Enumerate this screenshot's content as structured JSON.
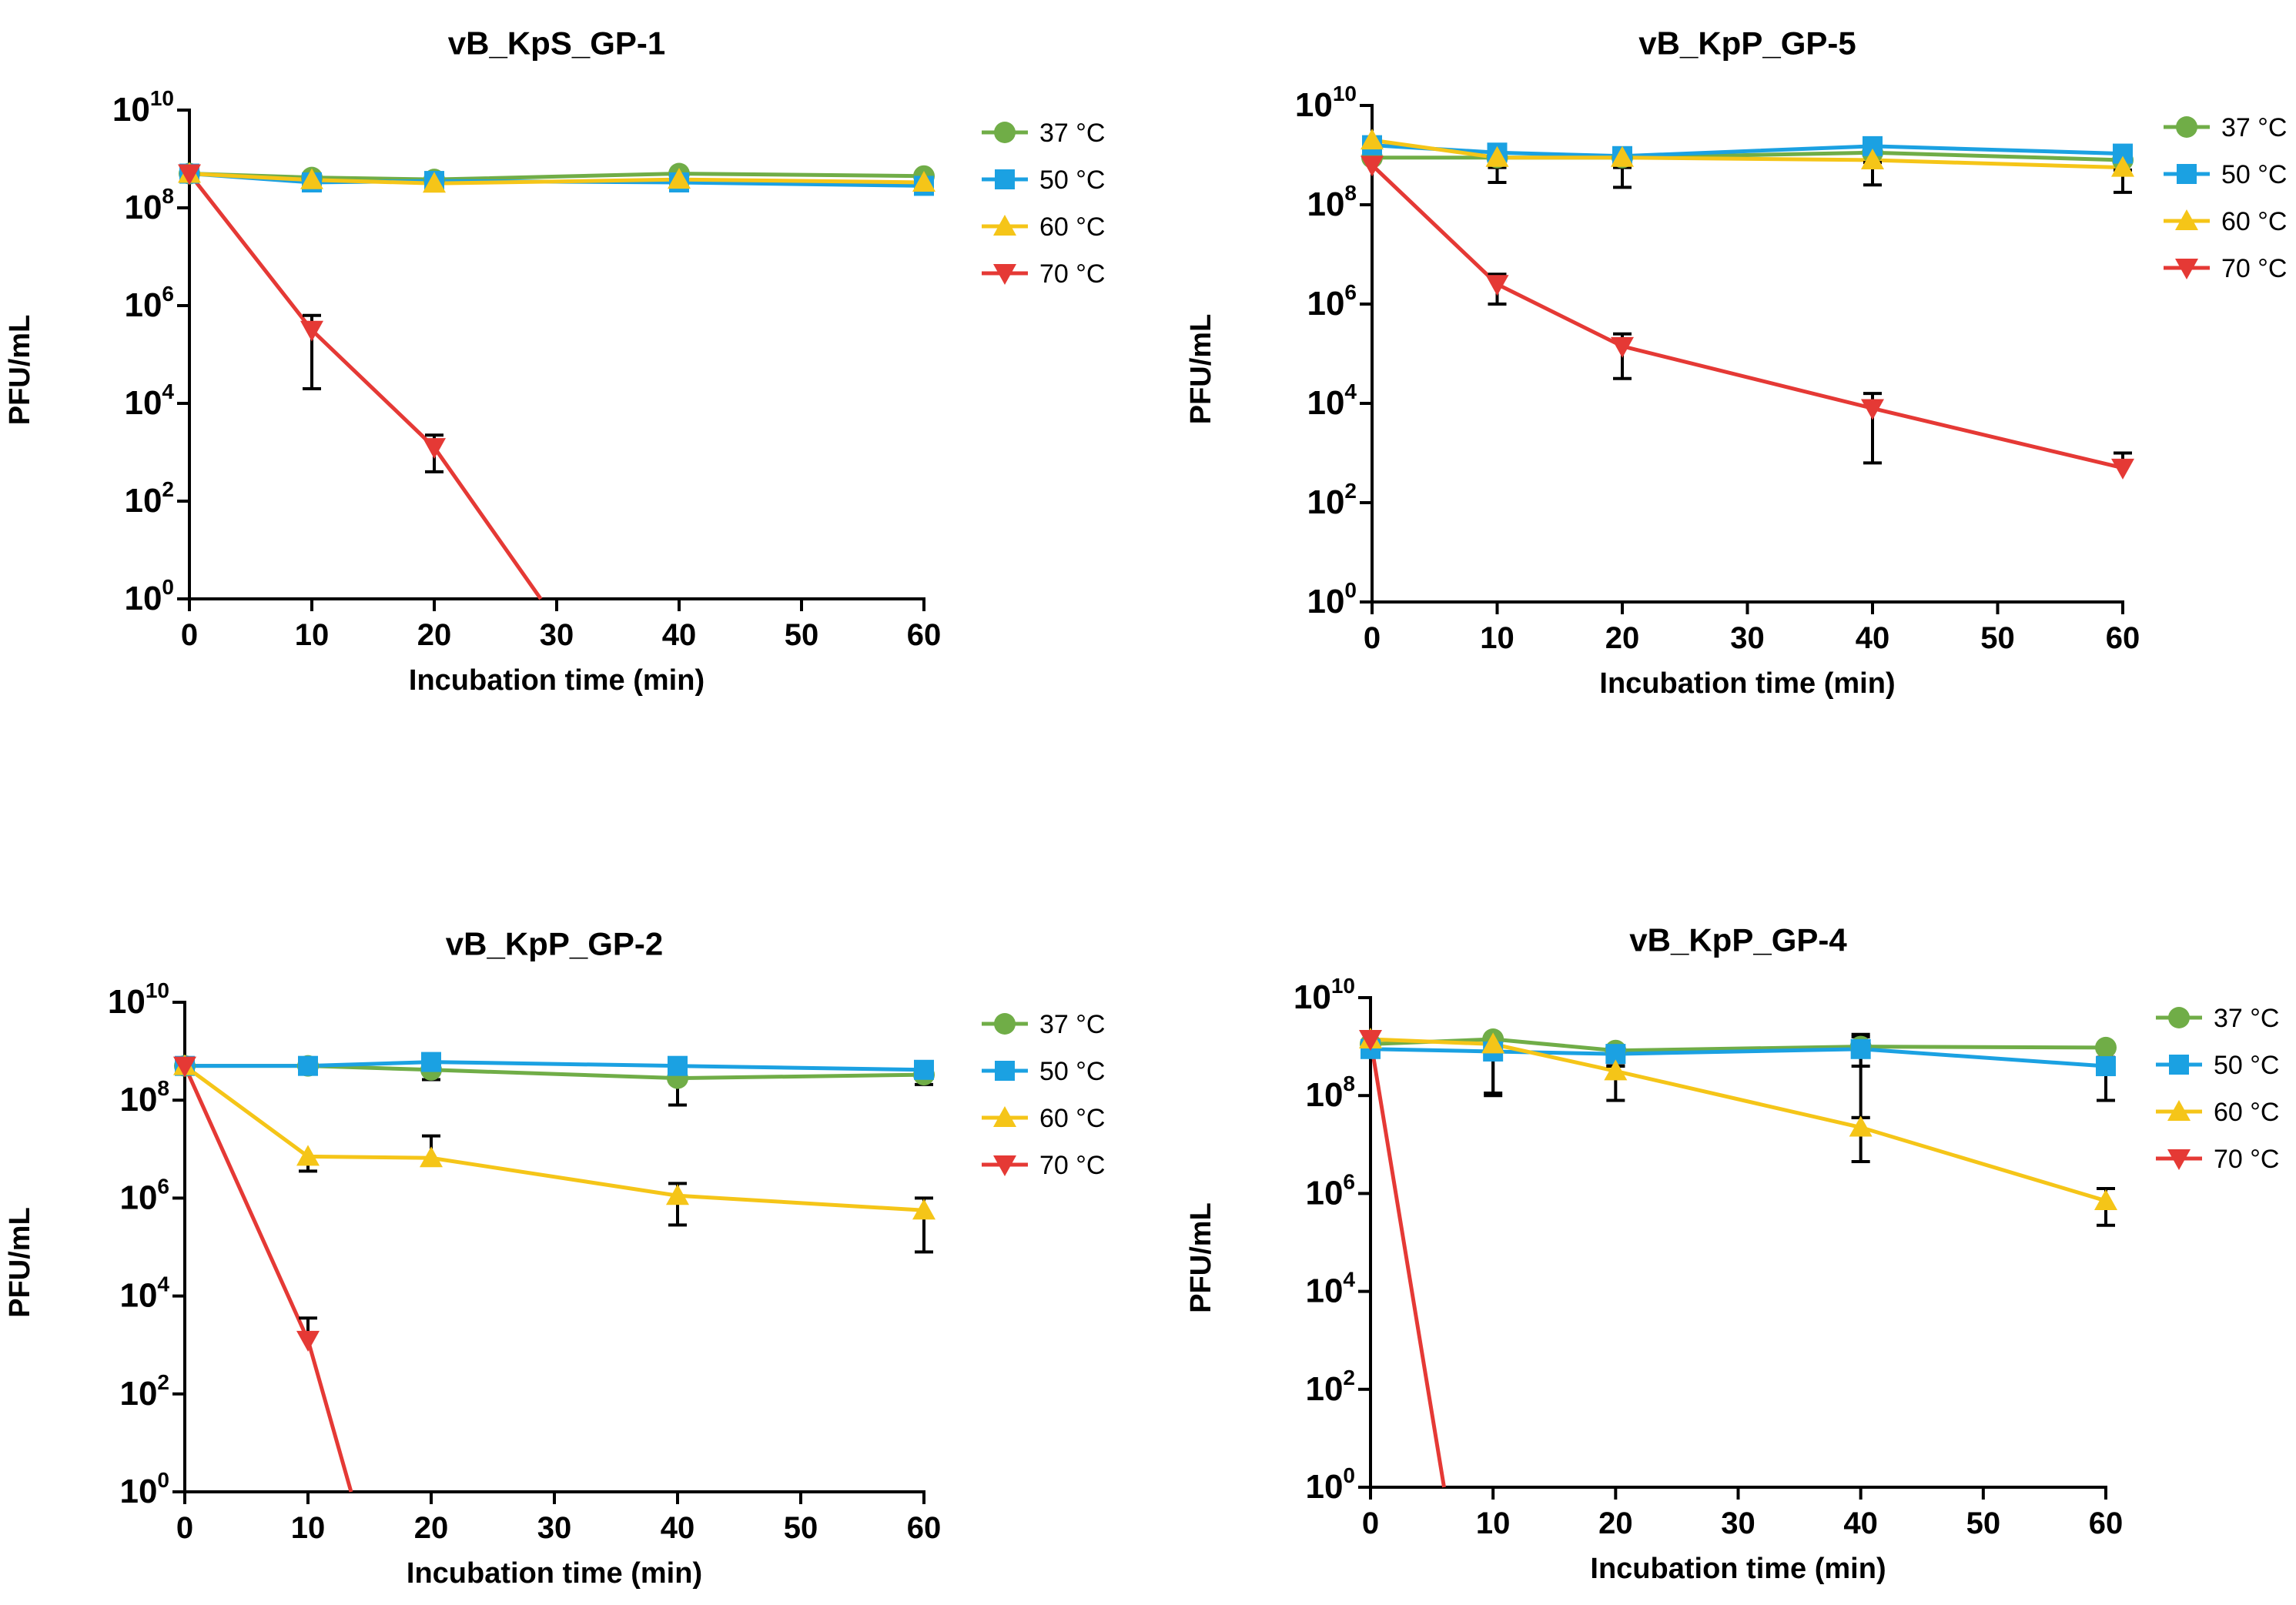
{
  "figure": {
    "xlabel": "Incubation time (min)",
    "ylabel": "PFU/mL"
  },
  "colors": {
    "37": "#70ad47",
    "50": "#1ba1e2",
    "60": "#f5c518",
    "70": "#e53935"
  },
  "chart_data": [
    {
      "type": "line",
      "title": "vB_KpS_GP-1",
      "xlabel": "Incubation time (min)",
      "ylabel": "PFU/mL",
      "y_scale": "log10",
      "xlim": [
        0,
        60
      ],
      "ylim_exponent": [
        0,
        10
      ],
      "x_ticks": [
        0,
        10,
        20,
        30,
        40,
        50,
        60
      ],
      "y_tick_exponents": [
        0,
        2,
        4,
        6,
        8,
        10
      ],
      "legend": [
        "37 °C",
        "50 °C",
        "60 °C",
        "70 °C"
      ],
      "series": [
        {
          "name": "37 °C",
          "marker": "circle",
          "x": [
            0,
            10,
            20,
            40,
            60
          ],
          "log10_values": [
            8.7,
            8.62,
            8.58,
            8.7,
            8.65
          ],
          "err_lo": [
            0,
            0.05,
            0.1,
            0.05,
            0.05
          ],
          "err_hi": [
            0,
            0.05,
            0.05,
            0.05,
            0.05
          ]
        },
        {
          "name": "50 °C",
          "marker": "square",
          "x": [
            0,
            10,
            20,
            40,
            60
          ],
          "log10_values": [
            8.7,
            8.52,
            8.55,
            8.52,
            8.45
          ],
          "err_lo": [
            0,
            0.05,
            0.1,
            0.12,
            0.1
          ],
          "err_hi": [
            0,
            0.05,
            0.05,
            0.05,
            0.05
          ]
        },
        {
          "name": "60 °C",
          "marker": "triangle-up",
          "x": [
            0,
            10,
            20,
            40,
            60
          ],
          "log10_values": [
            8.7,
            8.57,
            8.5,
            8.58,
            8.52
          ],
          "err_lo": [
            0,
            0.05,
            0.15,
            0.05,
            0.05
          ],
          "err_hi": [
            0,
            0.05,
            0.05,
            0.05,
            0.05
          ]
        },
        {
          "name": "70 °C",
          "marker": "triangle-down",
          "x": [
            0,
            10,
            20,
            28.7
          ],
          "log10_values": [
            8.7,
            5.5,
            3.1,
            0
          ],
          "err_lo": [
            0,
            1.2,
            0.5,
            0
          ],
          "err_hi": [
            0,
            0.3,
            0.25,
            0
          ]
        }
      ]
    },
    {
      "type": "line",
      "title": "vB_KpP_GP-5",
      "xlabel": "Incubation time (min)",
      "ylabel": "PFU/mL",
      "y_scale": "log10",
      "xlim": [
        0,
        60
      ],
      "ylim_exponent": [
        0,
        10
      ],
      "x_ticks": [
        0,
        10,
        20,
        30,
        40,
        50,
        60
      ],
      "y_tick_exponents": [
        0,
        2,
        4,
        6,
        8,
        10
      ],
      "legend": [
        "37 °C",
        "50 °C",
        "60 °C",
        "70 °C"
      ],
      "series": [
        {
          "name": "37 °C",
          "marker": "circle",
          "x": [
            0,
            10,
            20,
            40,
            60
          ],
          "log10_values": [
            8.95,
            8.95,
            8.95,
            9.05,
            8.9
          ],
          "err_lo": [
            0,
            0.2,
            0.2,
            0.2,
            0.2
          ],
          "err_hi": [
            0,
            0.1,
            0.15,
            0.1,
            0.1
          ]
        },
        {
          "name": "50 °C",
          "marker": "square",
          "x": [
            0,
            10,
            20,
            40,
            60
          ],
          "log10_values": [
            9.2,
            9.05,
            8.98,
            9.18,
            9.03
          ],
          "err_lo": [
            0,
            0.2,
            0.2,
            0.2,
            0.1
          ],
          "err_hi": [
            0,
            0.1,
            0.15,
            0.1,
            0.1
          ]
        },
        {
          "name": "60 °C",
          "marker": "triangle-up",
          "x": [
            0,
            10,
            20,
            40,
            60
          ],
          "log10_values": [
            9.3,
            8.95,
            8.95,
            8.9,
            8.75
          ],
          "err_lo": [
            0,
            0.5,
            0.6,
            0.5,
            0.5
          ],
          "err_hi": [
            0,
            0.1,
            0.15,
            0.1,
            0.1
          ]
        },
        {
          "name": "70 °C",
          "marker": "triangle-down",
          "x": [
            0,
            10,
            20,
            40,
            60
          ],
          "log10_values": [
            8.8,
            6.4,
            5.15,
            3.9,
            2.7
          ],
          "err_lo": [
            0,
            0.4,
            0.65,
            1.1,
            0
          ],
          "err_hi": [
            0,
            0.2,
            0.25,
            0.3,
            0.3
          ]
        }
      ]
    },
    {
      "type": "line",
      "title": "vB_KpP_GP-2",
      "xlabel": "Incubation time (min)",
      "ylabel": "PFU/mL",
      "y_scale": "log10",
      "xlim": [
        0,
        60
      ],
      "ylim_exponent": [
        0,
        10
      ],
      "x_ticks": [
        0,
        10,
        20,
        30,
        40,
        50,
        60
      ],
      "y_tick_exponents": [
        0,
        2,
        4,
        6,
        8,
        10
      ],
      "legend": [
        "37 °C",
        "50 °C",
        "60 °C",
        "70 °C"
      ],
      "series": [
        {
          "name": "37 °C",
          "marker": "circle",
          "x": [
            0,
            10,
            20,
            40,
            60
          ],
          "log10_values": [
            8.7,
            8.7,
            8.62,
            8.45,
            8.52
          ],
          "err_lo": [
            0,
            0.15,
            0.2,
            0.55,
            0.2
          ],
          "err_hi": [
            0,
            0.05,
            0.05,
            0.05,
            0.05
          ]
        },
        {
          "name": "50 °C",
          "marker": "square",
          "x": [
            0,
            10,
            20,
            40,
            60
          ],
          "log10_values": [
            8.7,
            8.7,
            8.78,
            8.7,
            8.62
          ],
          "err_lo": [
            0,
            0.1,
            0.05,
            0.05,
            0.05
          ],
          "err_hi": [
            0,
            0.05,
            0.05,
            0.05,
            0.05
          ]
        },
        {
          "name": "60 °C",
          "marker": "triangle-up",
          "x": [
            0,
            10,
            20,
            40,
            60
          ],
          "log10_values": [
            8.7,
            6.85,
            6.82,
            6.05,
            5.75
          ],
          "err_lo": [
            0,
            0.3,
            0,
            0.6,
            0.85
          ],
          "err_hi": [
            0,
            0,
            0.45,
            0.25,
            0.25
          ]
        },
        {
          "name": "70 °C",
          "marker": "triangle-down",
          "x": [
            0,
            10,
            13.5
          ],
          "log10_values": [
            8.7,
            3.1,
            0
          ],
          "err_lo": [
            0,
            0,
            0
          ],
          "err_hi": [
            0,
            0.45,
            0
          ]
        }
      ]
    },
    {
      "type": "line",
      "title": "vB_KpP_GP-4",
      "xlabel": "Incubation time (min)",
      "ylabel": "PFU/mL",
      "y_scale": "log10",
      "xlim": [
        0,
        60
      ],
      "ylim_exponent": [
        0,
        10
      ],
      "x_ticks": [
        0,
        10,
        20,
        30,
        40,
        50,
        60
      ],
      "y_tick_exponents": [
        0,
        2,
        4,
        6,
        8,
        10
      ],
      "legend": [
        "37 °C",
        "50 °C",
        "60 °C",
        "70 °C"
      ],
      "series": [
        {
          "name": "37 °C",
          "marker": "circle",
          "x": [
            0,
            10,
            20,
            40,
            60
          ],
          "log10_values": [
            9.05,
            9.15,
            8.92,
            9.0,
            8.98
          ],
          "err_lo": [
            0,
            1.1,
            0.25,
            0.4,
            0.2
          ],
          "err_hi": [
            0,
            0.05,
            0.1,
            0.25,
            0.05
          ]
        },
        {
          "name": "50 °C",
          "marker": "square",
          "x": [
            0,
            10,
            20,
            40,
            60
          ],
          "log10_values": [
            8.95,
            8.9,
            8.85,
            8.95,
            8.6
          ],
          "err_lo": [
            0,
            0.9,
            0.25,
            1.4,
            0.7
          ],
          "err_hi": [
            0,
            0.05,
            0.1,
            0.25,
            0.1
          ]
        },
        {
          "name": "60 °C",
          "marker": "triangle-up",
          "x": [
            0,
            10,
            20,
            40,
            60
          ],
          "log10_values": [
            9.15,
            9.05,
            8.5,
            7.35,
            5.85
          ],
          "err_lo": [
            0,
            0,
            0.6,
            0.7,
            0.5
          ],
          "err_hi": [
            0,
            0.05,
            0.1,
            0.2,
            0.25
          ]
        },
        {
          "name": "70 °C",
          "marker": "triangle-down",
          "x": [
            0,
            6
          ],
          "log10_values": [
            9.15,
            0
          ],
          "err_lo": [
            0,
            0
          ],
          "err_hi": [
            0,
            0
          ]
        }
      ]
    }
  ]
}
